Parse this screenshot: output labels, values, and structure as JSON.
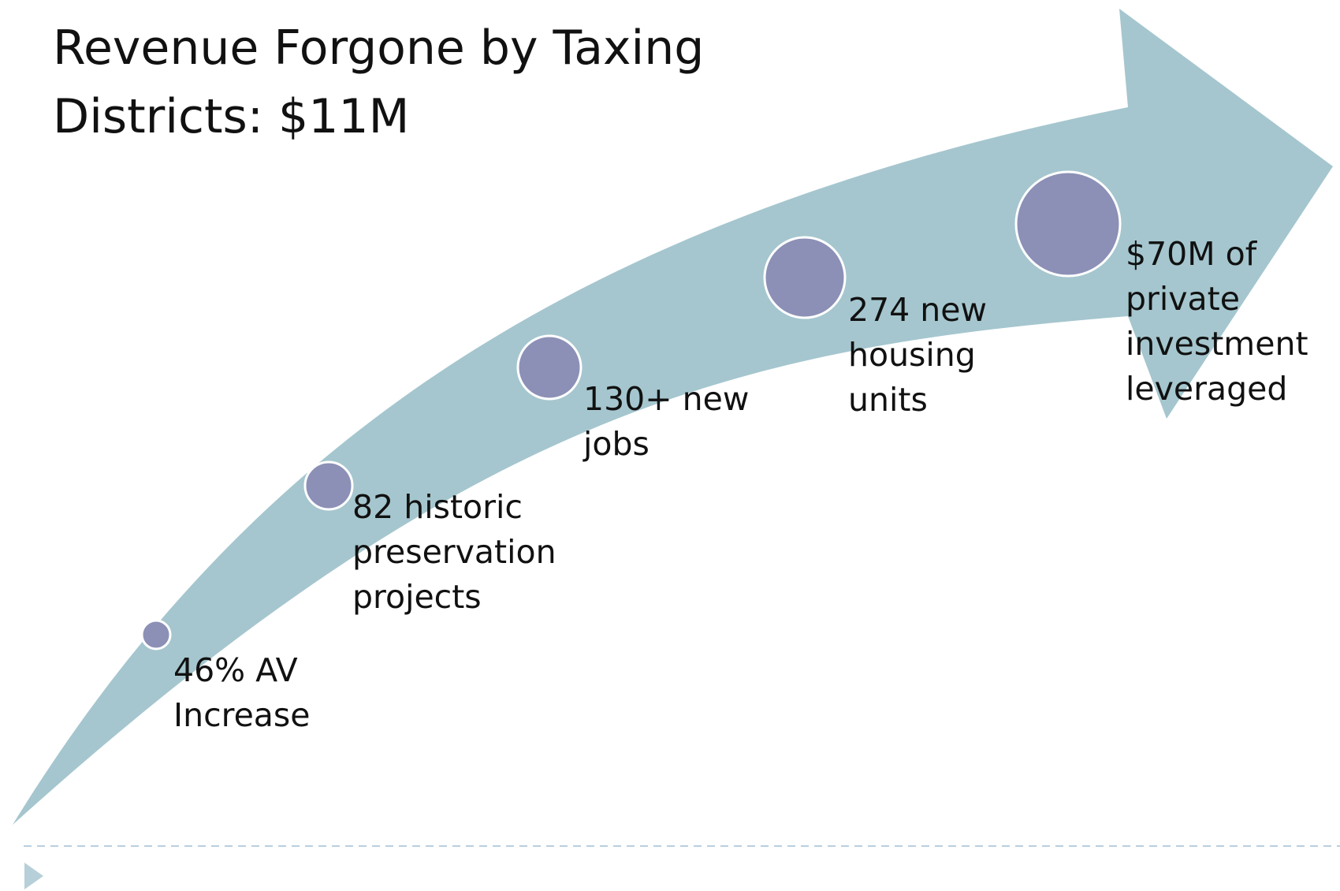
{
  "title": [
    "Revenue Forgone by Taxing",
    "Districts: $11M"
  ],
  "items": [
    {
      "lines": [
        "46% AV",
        "Increase"
      ]
    },
    {
      "lines": [
        "82 historic",
        "preservation",
        "projects"
      ]
    },
    {
      "lines": [
        "130+ new",
        "jobs"
      ]
    },
    {
      "lines": [
        "274 new",
        "housing",
        "units"
      ]
    },
    {
      "lines": [
        "$70M of",
        "private",
        "investment",
        "leveraged"
      ]
    }
  ]
}
